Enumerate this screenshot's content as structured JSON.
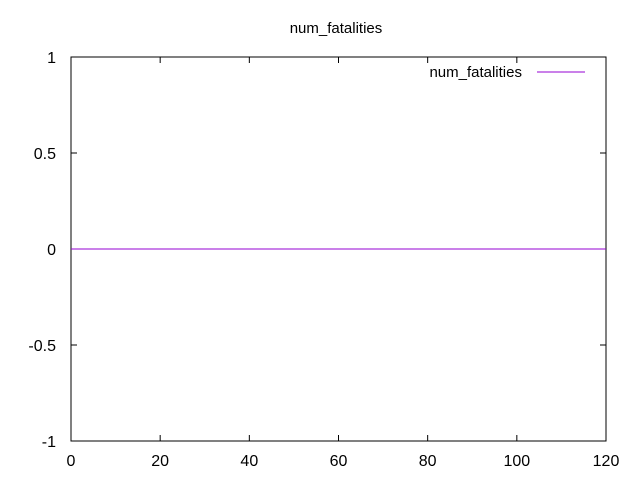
{
  "chart_data": {
    "type": "line",
    "title": "num_fatalities",
    "xlabel": "",
    "ylabel": "",
    "xlim": [
      0,
      120
    ],
    "ylim": [
      -1,
      1
    ],
    "xticks": [
      0,
      20,
      40,
      60,
      80,
      100,
      120
    ],
    "yticks": [
      -1,
      -0.5,
      0,
      0.5,
      1
    ],
    "xtick_labels": [
      "0",
      "20",
      "40",
      "60",
      "80",
      "100",
      "120"
    ],
    "ytick_labels": [
      "-1",
      "-0.5",
      "0",
      "0.5",
      "1"
    ],
    "grid": false,
    "legend_position": "top-right",
    "series": [
      {
        "name": "num_fatalities",
        "color": "#9400d3",
        "x": [
          0,
          120
        ],
        "y": [
          0,
          0
        ]
      }
    ]
  }
}
